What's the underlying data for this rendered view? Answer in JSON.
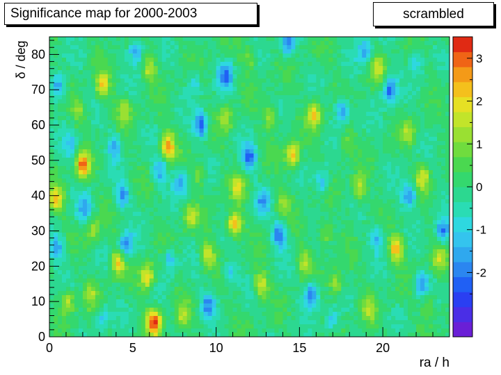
{
  "title": "Significance map for 2000-2003",
  "label": "scrambled",
  "chart_data": {
    "type": "heatmap",
    "xlabel": "ra / h",
    "ylabel": "δ / deg",
    "xlim": [
      0,
      24
    ],
    "ylim": [
      0,
      85
    ],
    "zlim": [
      -3.5,
      3.5
    ],
    "x_ticks": [
      0,
      5,
      10,
      15,
      20
    ],
    "y_ticks": [
      0,
      10,
      20,
      30,
      40,
      50,
      60,
      70,
      80
    ],
    "colorbar_ticks": [
      -2,
      -1,
      0,
      1,
      2,
      3
    ],
    "colorbar_steps": 20,
    "palette": [
      "#6a1fd6",
      "#4a2ee6",
      "#2a3ff2",
      "#2060f4",
      "#2b86f0",
      "#2fa8ee",
      "#34c4ee",
      "#2ed8e0",
      "#2adcb4",
      "#2cd890",
      "#34d86e",
      "#4ad850",
      "#70dc3e",
      "#9ae032",
      "#c2e42a",
      "#e6e024",
      "#f4c01c",
      "#f49a18",
      "#f06416",
      "#e02a14"
    ],
    "grid": false,
    "hotspots": [
      {
        "ra": 6.3,
        "dec": 4,
        "z": 3.2
      },
      {
        "ra": 2.0,
        "dec": 48.5,
        "z": 2.8
      },
      {
        "ra": 7.1,
        "dec": 54,
        "z": 2.6
      },
      {
        "ra": 11.1,
        "dec": 32,
        "z": 2.6
      },
      {
        "ra": 14.6,
        "dec": 51.5,
        "z": 2.4
      },
      {
        "ra": 20.8,
        "dec": 25,
        "z": 2.4
      },
      {
        "ra": 0.4,
        "dec": 39,
        "z": 2.2
      },
      {
        "ra": 5.9,
        "dec": 17,
        "z": 2.2
      },
      {
        "ra": 4.1,
        "dec": 21,
        "z": 2.0
      },
      {
        "ra": 3.2,
        "dec": 71,
        "z": 2.0
      },
      {
        "ra": 15.9,
        "dec": 63,
        "z": 2.0
      },
      {
        "ra": 9.5,
        "dec": 23,
        "z": 1.8
      },
      {
        "ra": 12.7,
        "dec": 15,
        "z": 1.8
      },
      {
        "ra": 18.6,
        "dec": 42,
        "z": 1.6
      },
      {
        "ra": 22.4,
        "dec": 45,
        "z": 1.6
      },
      {
        "ra": 1.1,
        "dec": 10,
        "z": 1.6
      },
      {
        "ra": 8.5,
        "dec": 34,
        "z": 1.5
      },
      {
        "ra": 17.2,
        "dec": 15,
        "z": 1.5
      },
      {
        "ra": 19.7,
        "dec": 76,
        "z": 1.5
      },
      {
        "ra": 6.0,
        "dec": 76,
        "z": 1.4
      },
      {
        "ra": 13.3,
        "dec": 62,
        "z": 1.4
      },
      {
        "ra": 23.4,
        "dec": 22,
        "z": 1.4
      },
      {
        "ra": 2.6,
        "dec": 30,
        "z": 1.3
      },
      {
        "ra": 10.6,
        "dec": 62,
        "z": 1.3
      },
      {
        "ra": 4.5,
        "dec": 64,
        "z": 1.2
      },
      {
        "ra": 16.5,
        "dec": 29,
        "z": 1.2
      },
      {
        "ra": 21.5,
        "dec": 58,
        "z": 1.2
      },
      {
        "ra": 8.0,
        "dec": 6,
        "z": 1.2
      },
      {
        "ra": 14.0,
        "dec": 38,
        "z": 1.1
      },
      {
        "ra": 19.2,
        "dec": 8,
        "z": 1.1
      },
      {
        "ra": 1.8,
        "dec": 64,
        "z": 1.0
      },
      {
        "ra": 12.0,
        "dec": 79,
        "z": 1.0
      },
      {
        "ra": 9.0,
        "dec": 46,
        "z": 1.0
      },
      {
        "ra": 17.8,
        "dec": 55,
        "z": 1.0
      },
      {
        "ra": 11.3,
        "dec": 42,
        "z": 1.6
      },
      {
        "ra": 15.3,
        "dec": 21,
        "z": 1.2
      },
      {
        "ra": 2.5,
        "dec": 12,
        "z": 1.0
      },
      {
        "ra": 22.8,
        "dec": 9,
        "z": 1.0
      },
      {
        "ra": 4.4,
        "dec": 40,
        "z": -1.8
      },
      {
        "ra": 3.9,
        "dec": 54,
        "z": -1.4
      },
      {
        "ra": 4.6,
        "dec": 26,
        "z": -2.0
      },
      {
        "ra": 9.1,
        "dec": 60,
        "z": -2.2
      },
      {
        "ra": 10.6,
        "dec": 74,
        "z": -2.2
      },
      {
        "ra": 12.0,
        "dec": 51,
        "z": -2.0
      },
      {
        "ra": 13.8,
        "dec": 29,
        "z": -2.2
      },
      {
        "ra": 14.3,
        "dec": 83,
        "z": -1.8
      },
      {
        "ra": 15.7,
        "dec": 12,
        "z": -2.2
      },
      {
        "ra": 17.6,
        "dec": 64,
        "z": -2.0
      },
      {
        "ra": 20.4,
        "dec": 70,
        "z": -2.2
      },
      {
        "ra": 21.6,
        "dec": 40,
        "z": -2.0
      },
      {
        "ra": 23.6,
        "dec": 30,
        "z": -2.0
      },
      {
        "ra": 0.6,
        "dec": 71,
        "z": -1.8
      },
      {
        "ra": 0.5,
        "dec": 25,
        "z": -1.6
      },
      {
        "ra": 2.1,
        "dec": 36,
        "z": -1.5
      },
      {
        "ra": 7.9,
        "dec": 44,
        "z": -1.6
      },
      {
        "ra": 6.6,
        "dec": 47,
        "z": -1.6
      },
      {
        "ra": 9.5,
        "dec": 9,
        "z": -1.8
      },
      {
        "ra": 5.2,
        "dec": 81,
        "z": -1.8
      },
      {
        "ra": 18.9,
        "dec": 81,
        "z": -1.6
      },
      {
        "ra": 12.8,
        "dec": 38,
        "z": -1.4
      },
      {
        "ra": 1.3,
        "dec": 54,
        "z": -1.2
      },
      {
        "ra": 7.2,
        "dec": 22,
        "z": -1.3
      },
      {
        "ra": 16.4,
        "dec": 44,
        "z": -1.4
      },
      {
        "ra": 19.7,
        "dec": 28,
        "z": -1.4
      },
      {
        "ra": 22.3,
        "dec": 15,
        "z": -1.6
      },
      {
        "ra": 10.8,
        "dec": 18,
        "z": -1.2
      },
      {
        "ra": 3.2,
        "dec": 5,
        "z": -1.2
      },
      {
        "ra": 16.9,
        "dec": 4,
        "z": -1.2
      },
      {
        "ra": 22.0,
        "dec": 78,
        "z": -1.2
      },
      {
        "ra": 8.7,
        "dec": 72,
        "z": -1.2
      }
    ]
  }
}
